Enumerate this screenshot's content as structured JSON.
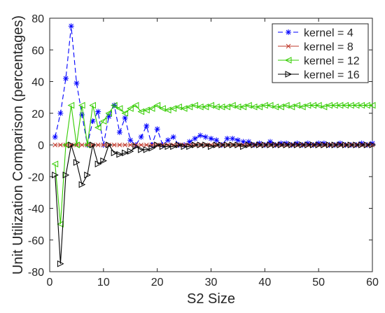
{
  "chart_data": {
    "type": "line",
    "title": "",
    "xlabel": "S2 Size",
    "ylabel": "Unit Utilization Comparison (percentages)",
    "xlim": [
      0,
      60
    ],
    "ylim": [
      -80,
      80
    ],
    "xticks": [
      0,
      10,
      20,
      30,
      40,
      50,
      60
    ],
    "yticks": [
      -80,
      -60,
      -40,
      -20,
      0,
      20,
      40,
      60,
      80
    ],
    "grid": false,
    "legend_position": "top-right",
    "series": [
      {
        "name": "kernel = 4",
        "color": "#0000ff",
        "line_style": "dashed",
        "marker": "asterisk",
        "x": [
          1,
          2,
          3,
          4,
          5,
          6,
          7,
          8,
          9,
          10,
          11,
          12,
          13,
          14,
          15,
          16,
          17,
          18,
          19,
          20,
          21,
          22,
          23,
          24,
          25,
          26,
          27,
          28,
          29,
          30,
          31,
          32,
          33,
          34,
          35,
          36,
          37,
          38,
          39,
          40,
          41,
          42,
          43,
          44,
          45,
          46,
          47,
          48,
          49,
          50,
          51,
          52,
          53,
          54,
          55,
          56,
          57,
          58,
          59,
          60
        ],
        "values": [
          5,
          20,
          42,
          75,
          39,
          19,
          0,
          15,
          21,
          0,
          18,
          25,
          8,
          17,
          3,
          0,
          5,
          12,
          0,
          10,
          0,
          3,
          5,
          0,
          0,
          2,
          4,
          6,
          5,
          4,
          3,
          0,
          4,
          4,
          3,
          2,
          2,
          0,
          1,
          0,
          2,
          0,
          1,
          1,
          0,
          1,
          0,
          1,
          0,
          1,
          1,
          0,
          0,
          1,
          0,
          0,
          0,
          1,
          0,
          1
        ]
      },
      {
        "name": "kernel = 8",
        "color": "#c0392b",
        "line_style": "solid",
        "marker": "x",
        "x": [
          1,
          2,
          3,
          4,
          5,
          6,
          7,
          8,
          9,
          10,
          11,
          12,
          13,
          14,
          15,
          16,
          17,
          18,
          19,
          20,
          21,
          22,
          23,
          24,
          25,
          26,
          27,
          28,
          29,
          30,
          31,
          32,
          33,
          34,
          35,
          36,
          37,
          38,
          39,
          40,
          41,
          42,
          43,
          44,
          45,
          46,
          47,
          48,
          49,
          50,
          51,
          52,
          53,
          54,
          55,
          56,
          57,
          58,
          59,
          60
        ],
        "values": [
          0,
          0,
          0,
          0,
          0,
          0,
          0,
          0,
          0,
          0,
          0,
          0,
          0,
          0,
          0,
          0,
          0,
          0,
          0,
          0,
          0,
          0,
          0,
          0,
          0,
          0,
          0,
          0,
          0,
          0,
          0,
          0,
          0,
          0,
          0,
          0,
          0,
          0,
          0,
          0,
          0,
          0,
          0,
          0,
          0,
          0,
          0,
          0,
          0,
          0,
          0,
          0,
          0,
          0,
          0,
          0,
          0,
          0,
          0,
          0
        ]
      },
      {
        "name": "kernel = 12",
        "color": "#33cc00",
        "line_style": "solid",
        "marker": "triangle-left",
        "x": [
          1,
          2,
          3,
          4,
          5,
          6,
          7,
          8,
          9,
          10,
          11,
          12,
          13,
          14,
          15,
          16,
          17,
          18,
          19,
          20,
          21,
          22,
          23,
          24,
          25,
          26,
          27,
          28,
          29,
          30,
          31,
          32,
          33,
          34,
          35,
          36,
          37,
          38,
          39,
          40,
          41,
          42,
          43,
          44,
          45,
          46,
          47,
          48,
          49,
          50,
          51,
          52,
          53,
          54,
          55,
          56,
          57,
          58,
          59,
          60
        ],
        "values": [
          -12,
          -50,
          0,
          25,
          0,
          25,
          0,
          25,
          11,
          15,
          20,
          25,
          23,
          20,
          23,
          25,
          21,
          22,
          23,
          25,
          23,
          22,
          23,
          24,
          23,
          24,
          25,
          24,
          24,
          25,
          24,
          24,
          24,
          25,
          24,
          24,
          25,
          24,
          24,
          25,
          25,
          24,
          24,
          25,
          24,
          25,
          24,
          25,
          25,
          25,
          24,
          25,
          25,
          25,
          25,
          25,
          25,
          25,
          25,
          25
        ]
      },
      {
        "name": "kernel = 16",
        "color": "#000000",
        "line_style": "solid",
        "marker": "triangle-right",
        "x": [
          1,
          2,
          3,
          4,
          5,
          6,
          7,
          8,
          9,
          10,
          11,
          12,
          13,
          14,
          15,
          16,
          17,
          18,
          19,
          20,
          21,
          22,
          23,
          24,
          25,
          26,
          27,
          28,
          29,
          30,
          31,
          32,
          33,
          34,
          35,
          36,
          37,
          38,
          39,
          40,
          41,
          42,
          43,
          44,
          45,
          46,
          47,
          48,
          49,
          50,
          51,
          52,
          53,
          54,
          55,
          56,
          57,
          58,
          59,
          60
        ],
        "values": [
          -19,
          -75,
          -19,
          0,
          -11,
          -25,
          -19,
          0,
          -12,
          -10,
          0,
          -5,
          -6,
          -5,
          -4,
          -1,
          -3,
          -3,
          -2,
          0,
          -1,
          -1,
          -1,
          0,
          -1,
          -1,
          0,
          0,
          0,
          -1,
          0,
          0,
          0,
          0,
          0,
          -1,
          0,
          0,
          0,
          0,
          0,
          0,
          0,
          0,
          0,
          0,
          0,
          0,
          0,
          0,
          0,
          0,
          0,
          0,
          0,
          0,
          0,
          0,
          0,
          0
        ]
      }
    ]
  }
}
